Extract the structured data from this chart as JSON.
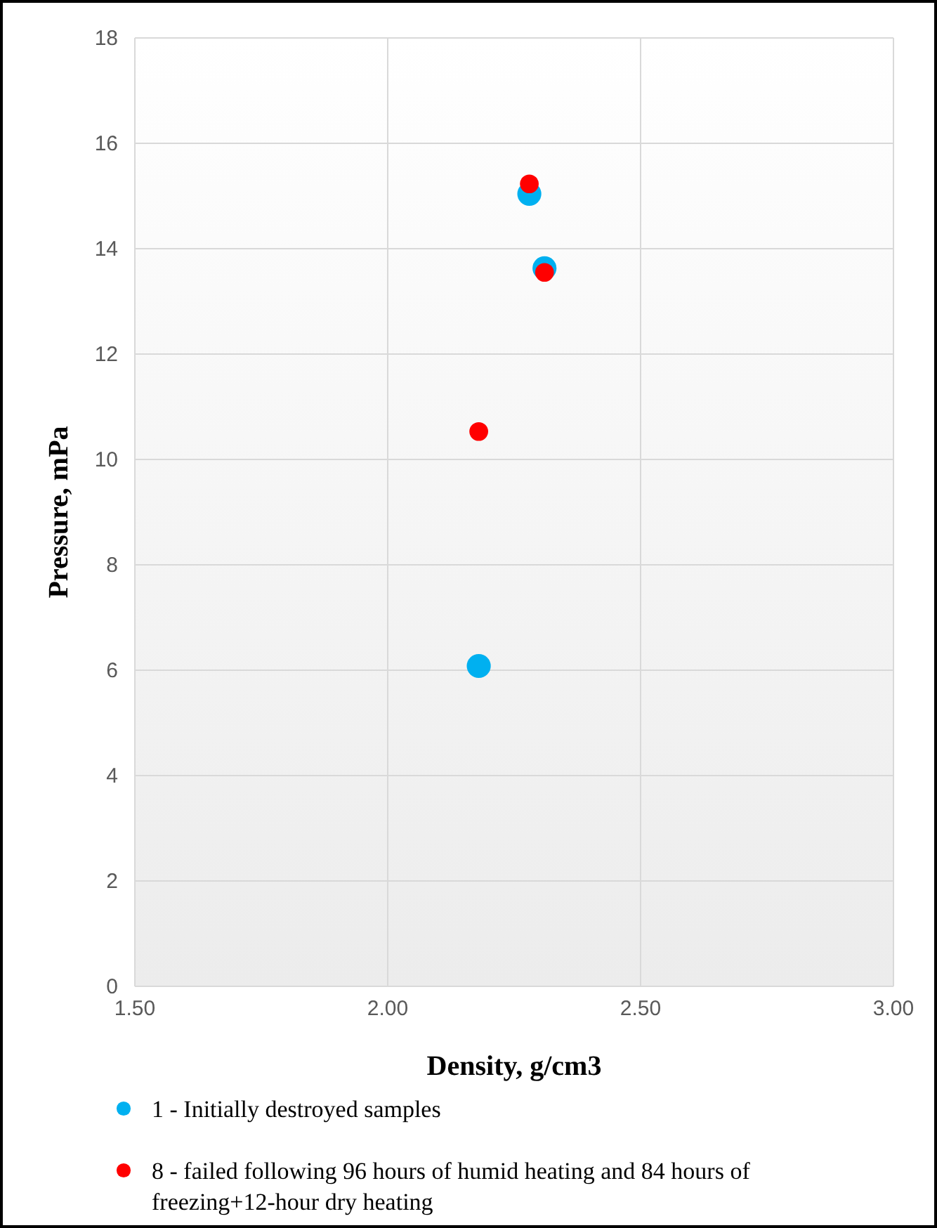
{
  "chart_data": {
    "type": "scatter",
    "xlabel": "Density, g/cm3",
    "ylabel": "Pressure, mPa",
    "xlim": [
      1.5,
      3
    ],
    "xticks": [
      {
        "value": 1.5,
        "label": "1.50"
      },
      {
        "value": 2,
        "label": "2.00"
      },
      {
        "value": 2.5,
        "label": "2.50"
      },
      {
        "value": 3,
        "label": "3.00"
      }
    ],
    "ylim": [
      0,
      18
    ],
    "yticks": [
      0,
      2,
      4,
      6,
      8,
      10,
      12,
      14,
      16,
      18
    ],
    "grid": true,
    "legend": "bottom",
    "marker": "circle",
    "series": [
      {
        "name": "1 - Initially destroyed samples",
        "color": "#00b0f0",
        "x": [
          2.28,
          2.31,
          2.18
        ],
        "values": [
          15.04,
          13.63,
          6.08
        ]
      },
      {
        "name": "8 - failed following 96 hours of humid heating and 84 hours of freezing+12-hour dry heating",
        "color": "#ff0000",
        "x": [
          2.28,
          2.31,
          2.18
        ],
        "values": [
          15.23,
          13.55,
          10.53
        ]
      }
    ]
  }
}
